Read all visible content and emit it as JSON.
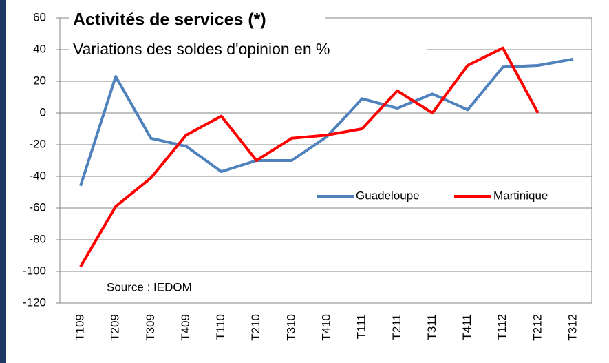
{
  "chart_data": {
    "type": "line",
    "title": "Activités de services (*)",
    "subtitle": "Variations des soldes d'opinion en %",
    "annotations": [
      "Source : IEDOM"
    ],
    "categories": [
      "T109",
      "T209",
      "T309",
      "T409",
      "T110",
      "T210",
      "T310",
      "T410",
      "T111",
      "T211",
      "T311",
      "T411",
      "T112",
      "T212",
      "T312"
    ],
    "series": [
      {
        "name": "Guadeloupe",
        "color": "#4f81bd",
        "values": [
          -46,
          23,
          -16,
          -21,
          -37,
          -30,
          -30,
          -15,
          9,
          3,
          12,
          2,
          29,
          30,
          34
        ]
      },
      {
        "name": "Martinique",
        "color": "#ff0000",
        "values": [
          -97,
          -59,
          -41,
          -14,
          -2,
          -30,
          -16,
          -14,
          -10,
          14,
          0,
          30,
          41,
          0,
          null
        ]
      }
    ],
    "ylim": [
      -120,
      60
    ],
    "yticks": [
      -120,
      -100,
      -80,
      -60,
      -40,
      -20,
      0,
      20,
      40,
      60
    ],
    "grid": true
  }
}
